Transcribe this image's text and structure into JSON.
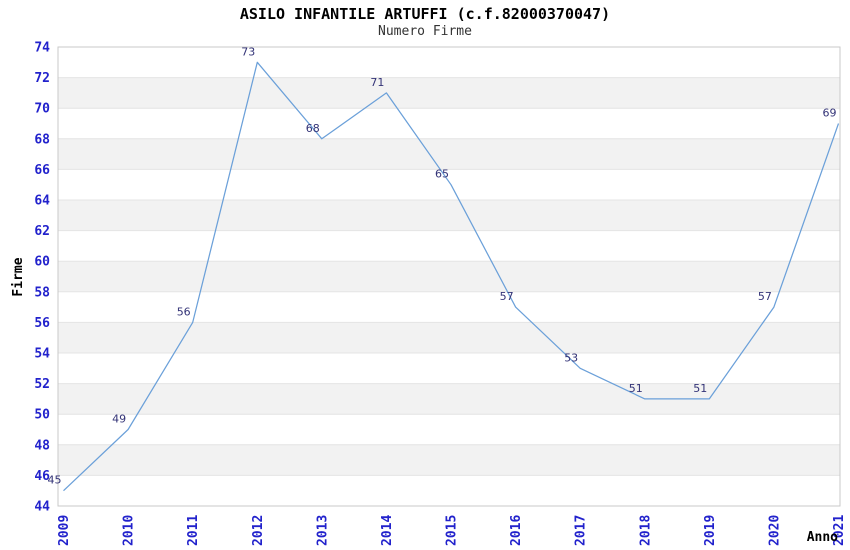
{
  "header": {
    "title": "ASILO INFANTILE ARTUFFI (c.f.82000370047)",
    "subtitle": "Numero Firme"
  },
  "chart_data": {
    "type": "line",
    "title": "ASILO INFANTILE ARTUFFI (c.f.82000370047)",
    "subtitle": "Numero Firme",
    "xlabel": "Anno",
    "ylabel": "Firme",
    "categories": [
      "2009",
      "2010",
      "2011",
      "2012",
      "2013",
      "2014",
      "2015",
      "2016",
      "2017",
      "2018",
      "2019",
      "2020",
      "2021"
    ],
    "series": [
      {
        "name": "Numero Firme",
        "values": [
          45,
          49,
          56,
          73,
          68,
          71,
          65,
          57,
          53,
          51,
          51,
          57,
          69
        ]
      }
    ],
    "ylim": [
      44,
      74
    ],
    "ytick_step": 2,
    "grid": true,
    "legend_position": "none",
    "data_labels_visible": true,
    "colors": {
      "line": "#6ba0d9",
      "data_label": "#333377",
      "tick_label": "#2222cc",
      "axis_title": "#000000",
      "band_even": "#ffffff",
      "band_odd": "#f2f2f2",
      "gridline": "#e4e4e4",
      "frame": "#c9c9c9",
      "background": "#ffffff"
    }
  }
}
